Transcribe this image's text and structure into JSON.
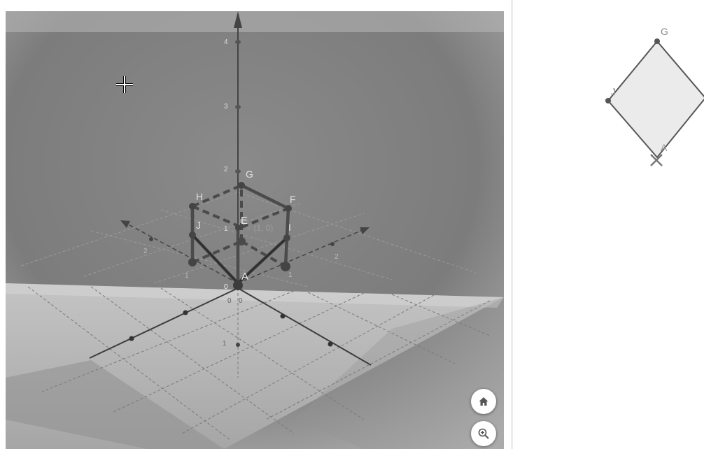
{
  "view3d": {
    "z_axis_ticks": [
      "4",
      "3",
      "2",
      "1",
      "0"
    ],
    "left_axis_ticks": [
      "2",
      "1"
    ],
    "right_axis_ticks": [
      "2",
      "1"
    ],
    "front_ticks": [
      "0",
      "0",
      "1"
    ],
    "cube_points": {
      "A": "A",
      "E": "E",
      "F": "F",
      "G": "G",
      "H": "H",
      "I": "I",
      "J": "J"
    },
    "plane_label": "= (1, 0)"
  },
  "view2d": {
    "points": {
      "G": "G",
      "J": "J",
      "A": "A"
    }
  },
  "buttons": {
    "home_icon": "home-icon",
    "zoom_icon": "zoom-in-icon"
  },
  "colors": {
    "bg3d": "#7d7d7d",
    "floor": "#c6c6c6",
    "edge": "#555555",
    "rhombus_fill": "#ebebeb"
  }
}
